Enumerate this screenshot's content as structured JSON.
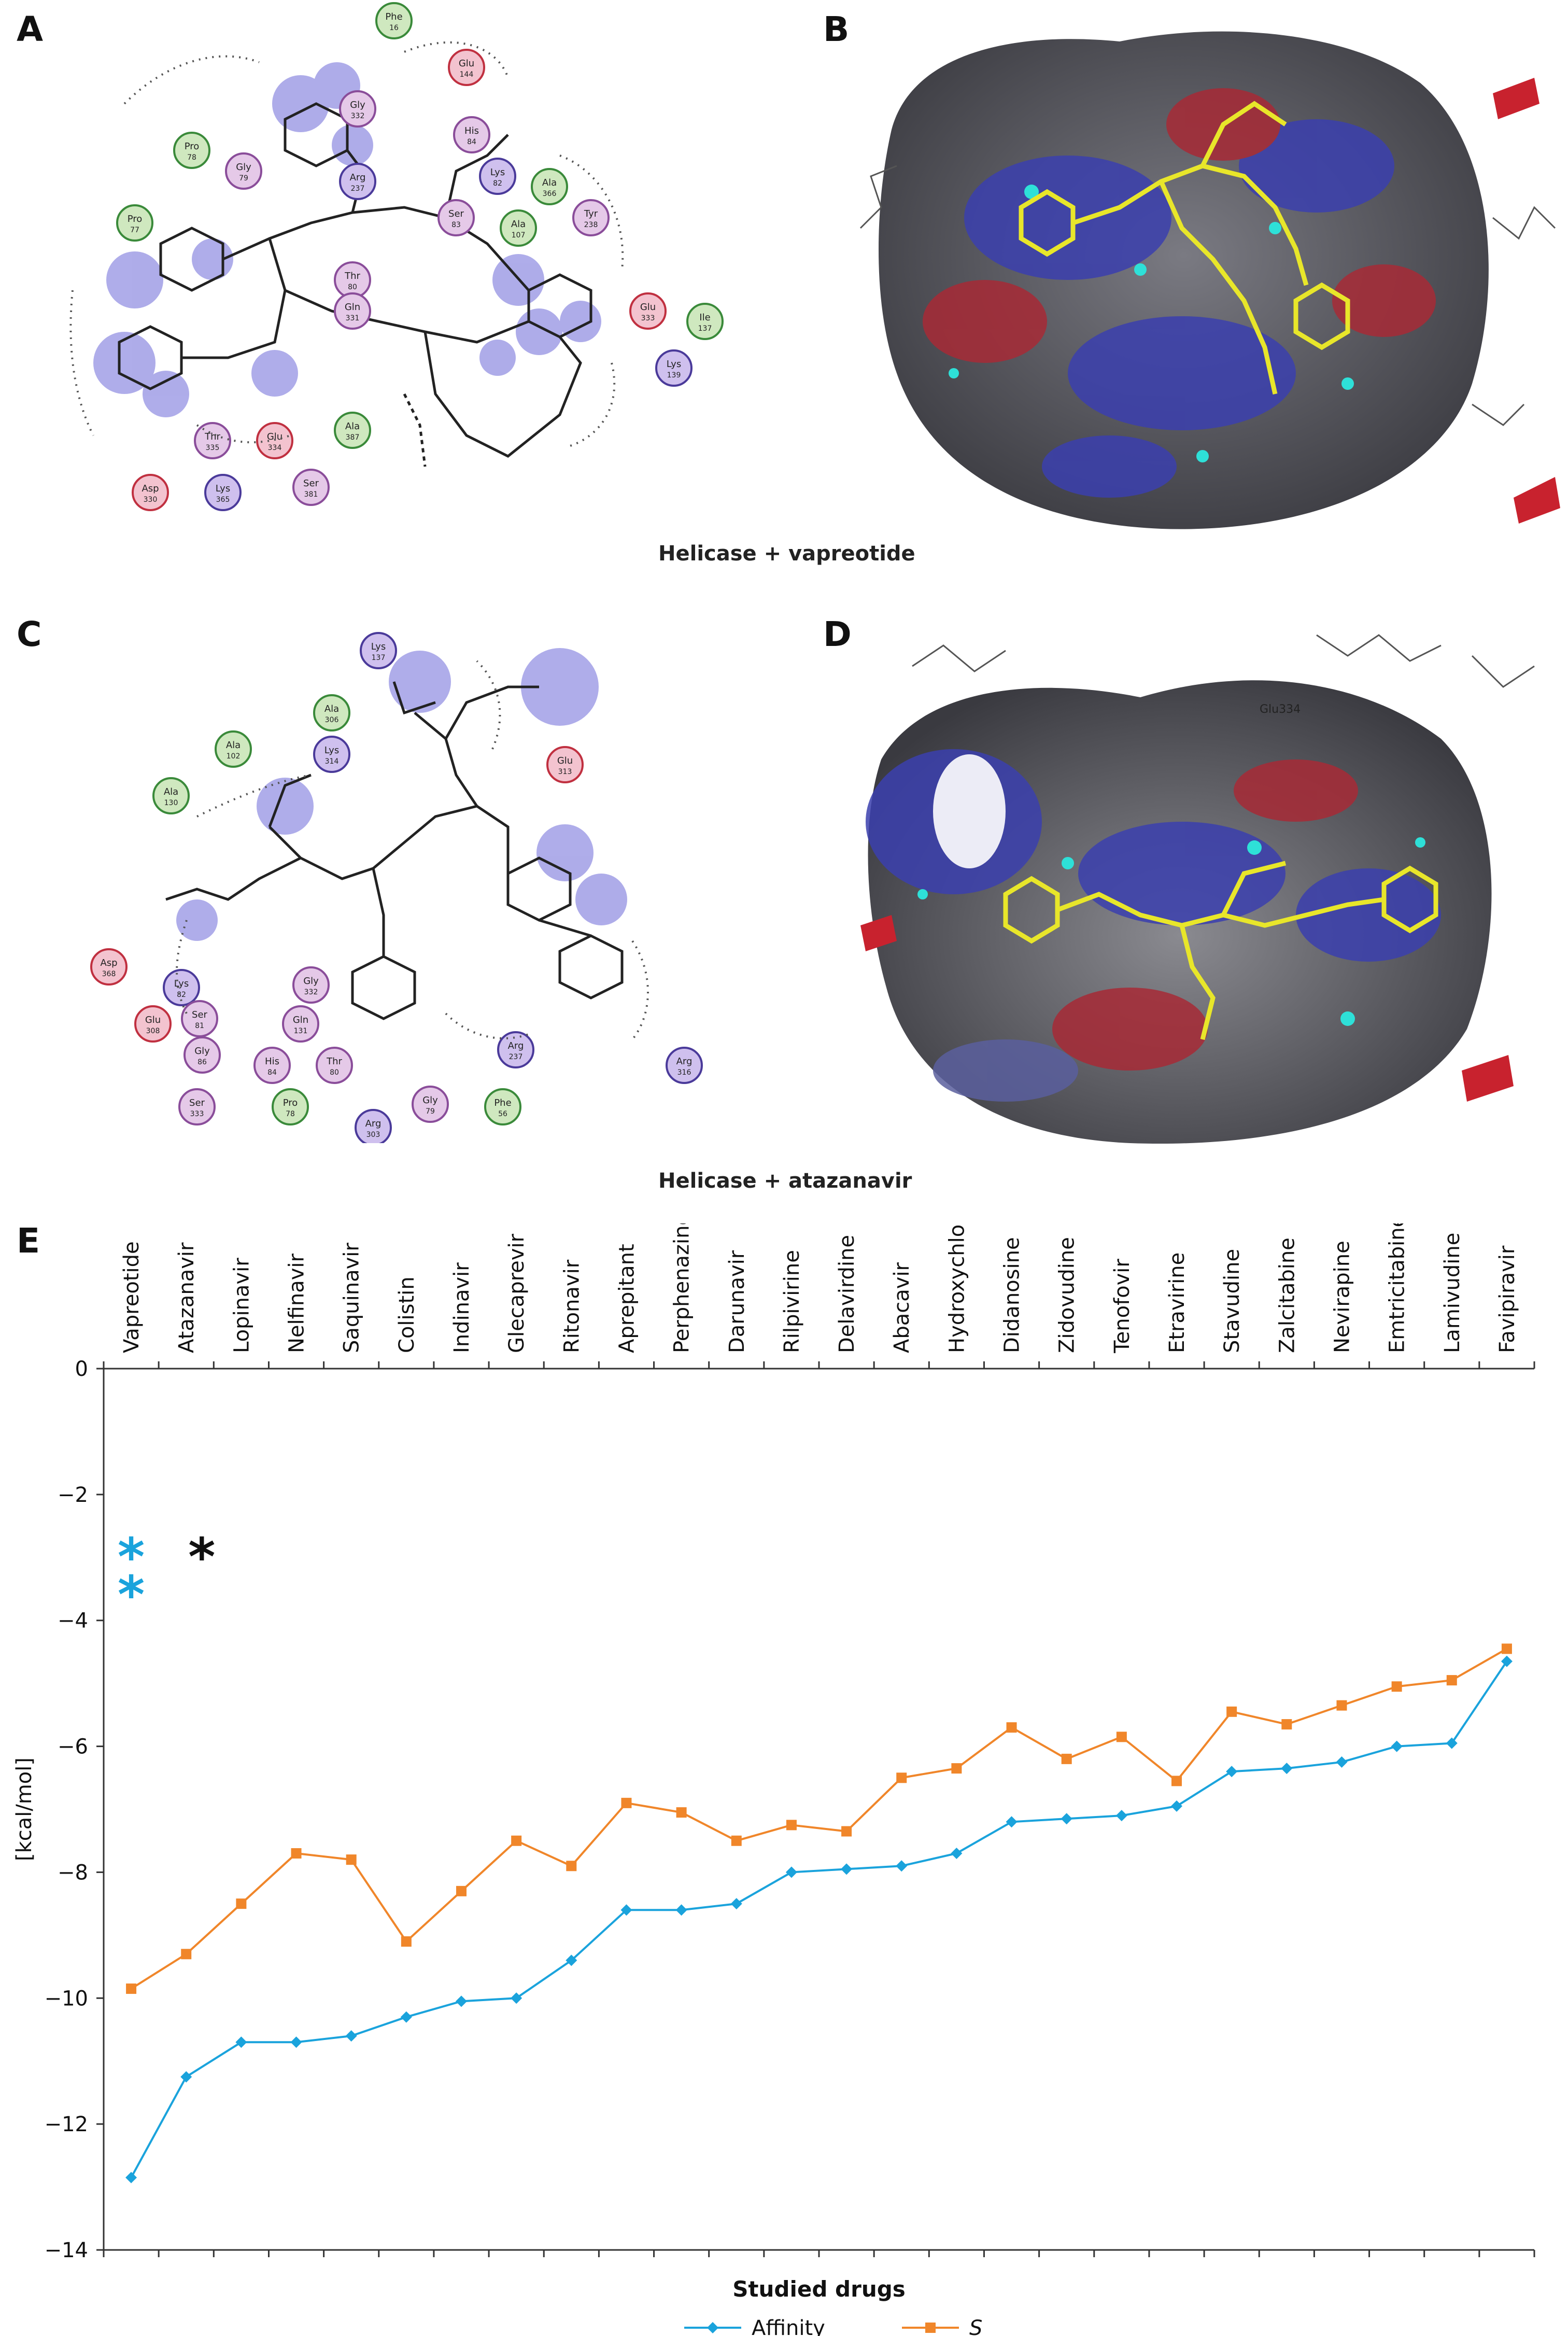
{
  "panels": {
    "a": {
      "label": "A"
    },
    "b": {
      "label": "B"
    },
    "c": {
      "label": "C"
    },
    "d": {
      "label": "D"
    },
    "e": {
      "label": "E"
    }
  },
  "captions": {
    "top": "Helicase + vapreotide",
    "middle": "Helicase + atazanavir"
  },
  "diagram_a": {
    "residues": [
      {
        "name": "Phe",
        "num": "16",
        "type": "hydrophobic"
      },
      {
        "name": "Glu",
        "num": "144",
        "type": "acidic"
      },
      {
        "name": "Gly",
        "num": "332",
        "type": "polar"
      },
      {
        "name": "His",
        "num": "84",
        "type": "polar"
      },
      {
        "name": "Pro",
        "num": "78",
        "type": "hydrophobic"
      },
      {
        "name": "Gly",
        "num": "79",
        "type": "polar"
      },
      {
        "name": "Arg",
        "num": "237",
        "type": "basic"
      },
      {
        "name": "Lys",
        "num": "82",
        "type": "basic"
      },
      {
        "name": "Ala",
        "num": "366",
        "type": "hydrophobic"
      },
      {
        "name": "Ser",
        "num": "83",
        "type": "polar"
      },
      {
        "name": "Ala",
        "num": "107",
        "type": "hydrophobic"
      },
      {
        "name": "Tyr",
        "num": "238",
        "type": "polar"
      },
      {
        "name": "Pro",
        "num": "77",
        "type": "hydrophobic"
      },
      {
        "name": "Thr",
        "num": "80",
        "type": "polar"
      },
      {
        "name": "Gln",
        "num": "331",
        "type": "polar"
      },
      {
        "name": "Glu",
        "num": "333",
        "type": "acidic"
      },
      {
        "name": "Ile",
        "num": "137",
        "type": "hydrophobic"
      },
      {
        "name": "Lys",
        "num": "139",
        "type": "basic"
      },
      {
        "name": "Thr",
        "num": "335",
        "type": "polar"
      },
      {
        "name": "Glu",
        "num": "334",
        "type": "acidic"
      },
      {
        "name": "Ala",
        "num": "387",
        "type": "hydrophobic"
      },
      {
        "name": "Asp",
        "num": "330",
        "type": "acidic"
      },
      {
        "name": "Lys",
        "num": "365",
        "type": "basic"
      },
      {
        "name": "Ser",
        "num": "381",
        "type": "polar"
      }
    ]
  },
  "diagram_c": {
    "residues": [
      {
        "name": "Lys",
        "num": "137",
        "type": "basic"
      },
      {
        "name": "Ala",
        "num": "306",
        "type": "hydrophobic"
      },
      {
        "name": "Ala",
        "num": "102",
        "type": "hydrophobic"
      },
      {
        "name": "Lys",
        "num": "314",
        "type": "basic"
      },
      {
        "name": "Glu",
        "num": "313",
        "type": "acidic"
      },
      {
        "name": "Ala",
        "num": "130",
        "type": "hydrophobic"
      },
      {
        "name": "Asp",
        "num": "368",
        "type": "acidic"
      },
      {
        "name": "Lys",
        "num": "82",
        "type": "basic"
      },
      {
        "name": "Gly",
        "num": "332",
        "type": "polar"
      },
      {
        "name": "Glu",
        "num": "308",
        "type": "acidic"
      },
      {
        "name": "Ser",
        "num": "81",
        "type": "polar"
      },
      {
        "name": "Gln",
        "num": "131",
        "type": "polar"
      },
      {
        "name": "Gly",
        "num": "86",
        "type": "polar"
      },
      {
        "name": "His",
        "num": "84",
        "type": "polar"
      },
      {
        "name": "Thr",
        "num": "80",
        "type": "polar"
      },
      {
        "name": "Arg",
        "num": "237",
        "type": "basic"
      },
      {
        "name": "Arg",
        "num": "316",
        "type": "basic"
      },
      {
        "name": "Ser",
        "num": "333",
        "type": "polar"
      },
      {
        "name": "Pro",
        "num": "78",
        "type": "hydrophobic"
      },
      {
        "name": "Gly",
        "num": "79",
        "type": "polar"
      },
      {
        "name": "Phe",
        "num": "56",
        "type": "hydrophobic"
      },
      {
        "name": "Arg",
        "num": "303",
        "type": "basic"
      }
    ]
  },
  "surface_labels": {
    "d": [
      "Glu334"
    ]
  },
  "chart_data": {
    "type": "line",
    "title": "",
    "xlabel": "Studied drugs",
    "ylabel": "[kcal/mol]",
    "ylim": [
      -14,
      0
    ],
    "yticks": [
      "0",
      "−2",
      "−4",
      "−6",
      "−8",
      "−10",
      "−12",
      "−14"
    ],
    "ytick_values": [
      0,
      -2,
      -4,
      -6,
      -8,
      -10,
      -12,
      -14
    ],
    "grid": false,
    "legend_position": "bottom-center",
    "categories": [
      "Vapreotide",
      "Atazanavir",
      "Lopinavir",
      "Nelfinavir",
      "Saquinavir",
      "Colistin",
      "Indinavir",
      "Glecaprevir",
      "Ritonavir",
      "Aprepitant",
      "Perphenazine",
      "Darunavir",
      "Rilpivirine",
      "Delavirdine",
      "Abacavir",
      "Hydroxychloroquine",
      "Didanosine",
      "Zidovudine",
      "Tenofovir",
      "Etravirine",
      "Stavudine",
      "Zalcitabine",
      "Nevirapine",
      "Emtricitabine",
      "Lamivudine",
      "Favipiravir"
    ],
    "series": [
      {
        "name": "Affinity",
        "color": "#1aa3dc",
        "marker": "diamond",
        "values": [
          -12.85,
          -11.25,
          -10.7,
          -10.7,
          -10.6,
          -10.3,
          -10.05,
          -10.0,
          -9.4,
          -8.6,
          -8.6,
          -8.5,
          -8.0,
          -7.95,
          -7.9,
          -7.7,
          -7.2,
          -7.15,
          -7.1,
          -6.95,
          -6.4,
          -6.35,
          -6.25,
          -6.0,
          -5.95,
          -4.65
        ]
      },
      {
        "name": "S",
        "color": "#f0862a",
        "marker": "square",
        "values": [
          -9.85,
          -9.3,
          -8.5,
          -7.7,
          -7.8,
          -9.1,
          -8.3,
          -7.5,
          -7.9,
          -6.9,
          -7.05,
          -7.5,
          -7.25,
          -7.35,
          -6.5,
          -6.35,
          -5.7,
          -6.2,
          -5.85,
          -6.55,
          -5.45,
          -5.65,
          -5.35,
          -5.05,
          -4.95,
          -4.45
        ]
      }
    ],
    "annotations": [
      {
        "text": "*",
        "color": "#1aa3dc"
      },
      {
        "text": "*",
        "color": "#1aa3dc"
      },
      {
        "text": "*",
        "color": "#111111"
      }
    ]
  }
}
